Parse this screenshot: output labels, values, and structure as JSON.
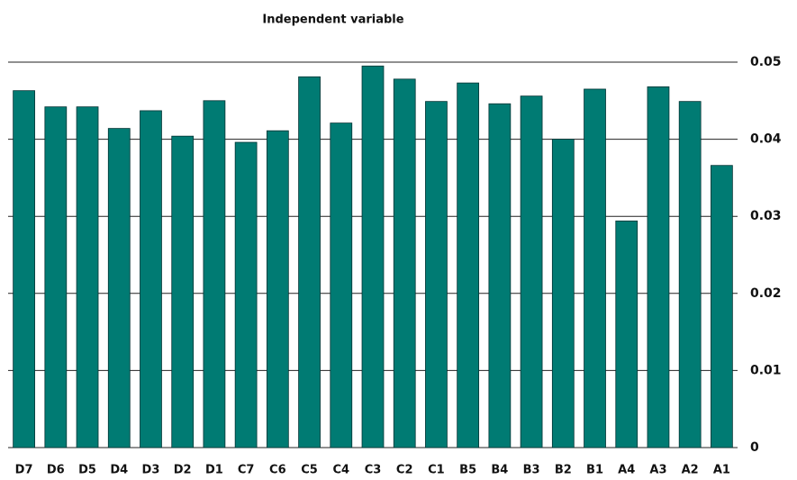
{
  "chart_data": {
    "type": "bar",
    "title": "Independent variable",
    "categories": [
      "D7",
      "D6",
      "D5",
      "D4",
      "D3",
      "D2",
      "D1",
      "C7",
      "C6",
      "C5",
      "C4",
      "C3",
      "C2",
      "C1",
      "B5",
      "B4",
      "B3",
      "B2",
      "B1",
      "A4",
      "A3",
      "A2",
      "A1"
    ],
    "values": [
      0.0463,
      0.0442,
      0.0442,
      0.0414,
      0.0437,
      0.0404,
      0.045,
      0.0396,
      0.0411,
      0.0481,
      0.0421,
      0.0495,
      0.0478,
      0.0449,
      0.0473,
      0.0446,
      0.0456,
      0.04,
      0.0465,
      0.0294,
      0.0468,
      0.0449,
      0.0366
    ],
    "color": "#007b73",
    "ylim": [
      0,
      0.05
    ],
    "yticks": [
      0,
      0.01,
      0.02,
      0.03,
      0.04,
      0.05
    ],
    "grid": true,
    "y_axis_side": "right"
  }
}
